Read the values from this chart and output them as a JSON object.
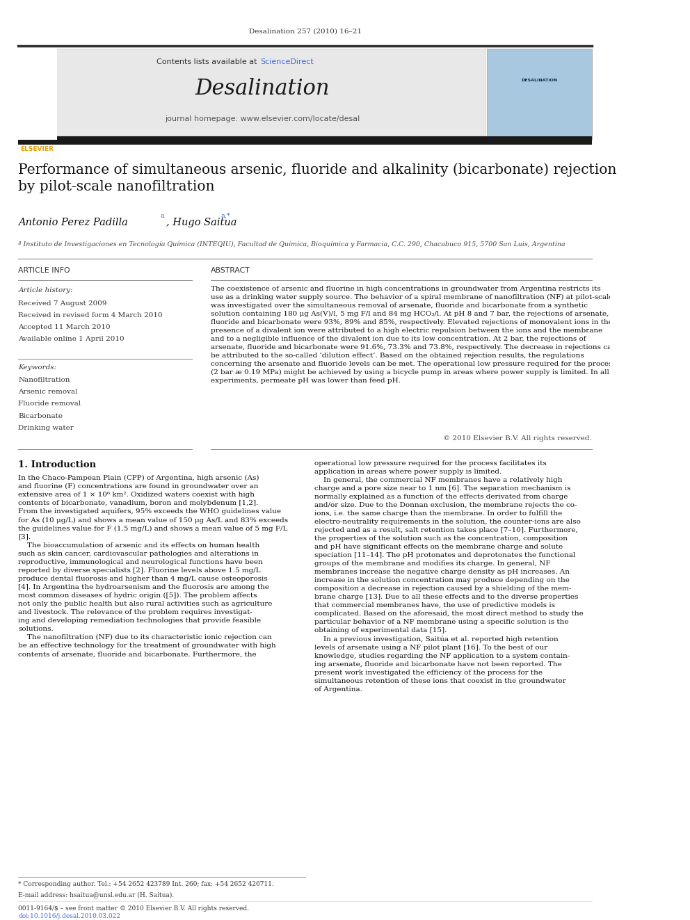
{
  "page_width": 9.92,
  "page_height": 13.23,
  "background_color": "#ffffff",
  "journal_ref": "Desalination 257 (2010) 16–21",
  "journal_name": "Desalination",
  "journal_homepage": "journal homepage: www.elsevier.com/locate/desal",
  "contents_text": "Contents lists available at ",
  "science_direct": "ScienceDirect",
  "title": "Performance of simultaneous arsenic, fluoride and alkalinity (bicarbonate) rejection\nby pilot-scale nanofiltration",
  "authors1": "Antonio Perez Padilla ",
  "authors2": ", Hugo Saitua ",
  "authors_super1": "a",
  "authors_super2": "a,*",
  "affiliation": "ª Instituto de Investigaciones en Tecnología Química (INTEQIU), Facultad de Química, Bioquímica y Farmacia, C.C. 290, Chacabuco 915, 5700 San Luis, Argentina",
  "article_info_header": "ARTICLE INFO",
  "abstract_header": "ABSTRACT",
  "article_history_label": "Article history:",
  "received1": "Received 7 August 2009",
  "received2": "Received in revised form 4 March 2010",
  "accepted": "Accepted 11 March 2010",
  "available": "Available online 1 April 2010",
  "keywords_label": "Keywords:",
  "keywords": [
    "Nanofiltration",
    "Arsenic removal",
    "Fluoride removal",
    "Bicarbonate",
    "Drinking water"
  ],
  "abstract_text": "The coexistence of arsenic and fluorine in high concentrations in groundwater from Argentina restricts its\nuse as a drinking water supply source. The behavior of a spiral membrane of nanofiltration (NF) at pilot-scale\nwas investigated over the simultaneous removal of arsenate, fluoride and bicarbonate from a synthetic\nsolution containing 180 μg As(V)/l, 5 mg F/l and 84 mg HCO₃/l. At pH 8 and 7 bar, the rejections of arsenate,\nfluoride and bicarbonate were 93%, 89% and 85%, respectively. Elevated rejections of monovalent ions in the\npresence of a divalent ion were attributed to a high electric repulsion between the ions and the membrane\nand to a negligible influence of the divalent ion due to its low concentration. At 2 bar, the rejections of\narsenate, fluoride and bicarbonate were 91.6%, 73.3% and 73.8%, respectively. The decrease in rejections can\nbe attributed to the so-called ‘dilution effect’. Based on the obtained rejection results, the regulations\nconcerning the arsenate and fluoride levels can be met. The operational low pressure required for the process\n(2 bar æ 0.19 MPa) might be achieved by using a bicycle pump in areas where power supply is limited. In all\nexperiments, permeate pH was lower than feed pH.",
  "copyright": "© 2010 Elsevier B.V. All rights reserved.",
  "section1_header": "1. Introduction",
  "left_intro": "In the Chaco-Pampean Plain (CPP) of Argentina, high arsenic (As)\nand fluorine (F) concentrations are found in groundwater over an\nextensive area of 1 × 10⁶ km². Oxidized waters coexist with high\ncontents of bicarbonate, vanadium, boron and molybdenum [1,2].\nFrom the investigated aquifers, 95% exceeds the WHO guidelines value\nfor As (10 μg/L) and shows a mean value of 150 μg As/L and 83% exceeds\nthe guidelines value for F (1.5 mg/L) and shows a mean value of 5 mg F/L\n[3].\n    The bioaccumulation of arsenic and its effects on human health\nsuch as skin cancer, cardiovascular pathologies and alterations in\nreproductive, immunological and neurological functions have been\nreported by diverse specialists [2]. Fluorine levels above 1.5 mg/L\nproduce dental fluorosis and higher than 4 mg/L cause osteoporosis\n[4]. In Argentina the hydroarsenism and the fluorosis are among the\nmost common diseases of hydric origin ([5]). The problem affects\nnot only the public health but also rural activities such as agriculture\nand livestock. The relevance of the problem requires investigat-\ning and developing remediation technologies that provide feasible\nsolutions.\n    The nanofiltration (NF) due to its characteristic ionic rejection can\nbe an effective technology for the treatment of groundwater with high\ncontents of arsenate, fluoride and bicarbonate. Furthermore, the",
  "right_intro": "operational low pressure required for the process facilitates its\napplication in areas where power supply is limited.\n    In general, the commercial NF membranes have a relatively high\ncharge and a pore size near to 1 nm [6]. The separation mechanism is\nnormally explained as a function of the effects derivated from charge\nand/or size. Due to the Donnan exclusion, the membrane rejects the co-\nions, i.e. the same charge than the membrane. In order to fulfill the\nelectro-neutrality requirements in the solution, the counter-ions are also\nrejected and as a result, salt retention takes place [7–10]. Furthermore,\nthe properties of the solution such as the concentration, composition\nand pH have significant effects on the membrane charge and solute\nspeciation [11–14]. The pH protonates and deprotonates the functional\ngroups of the membrane and modifies its charge. In general, NF\nmembranes increase the negative charge density as pH increases. An\nincrease in the solution concentration may produce depending on the\ncomposition a decrease in rejection caused by a shielding of the mem-\nbrane charge [13]. Due to all these effects and to the diverse properties\nthat commercial membranes have, the use of predictive models is\ncomplicated. Based on the aforesaid, the most direct method to study the\nparticular behavior of a NF membrane using a specific solution is the\nobtaining of experimental data [15].\n    In a previous investigation, Saitúa et al. reported high retention\nlevels of arsenate using a NF pilot plant [16]. To the best of our\nknowledge, studies regarding the NF application to a system contain-\ning arsenate, fluoride and bicarbonate have not been reported. The\npresent work investigated the efficiency of the process for the\nsimultaneous retention of these ions that coexist in the groundwater\nof Argentina.",
  "footnote_star": "* Corresponding author. Tel.: +54 2652 423789 Int. 260; fax: +54 2652 426711.",
  "footnote_email": "E-mail address: hsaitua@unsl.edu.ar (H. Saitua).",
  "issn_line": "0011-9164/$ – see front matter © 2010 Elsevier B.V. All rights reserved.",
  "doi_line": "doi:10.1016/j.desal.2010.03.022",
  "header_bg_color": "#e8e8e8",
  "science_direct_color": "#4169E1",
  "blue_link_color": "#4169E1"
}
